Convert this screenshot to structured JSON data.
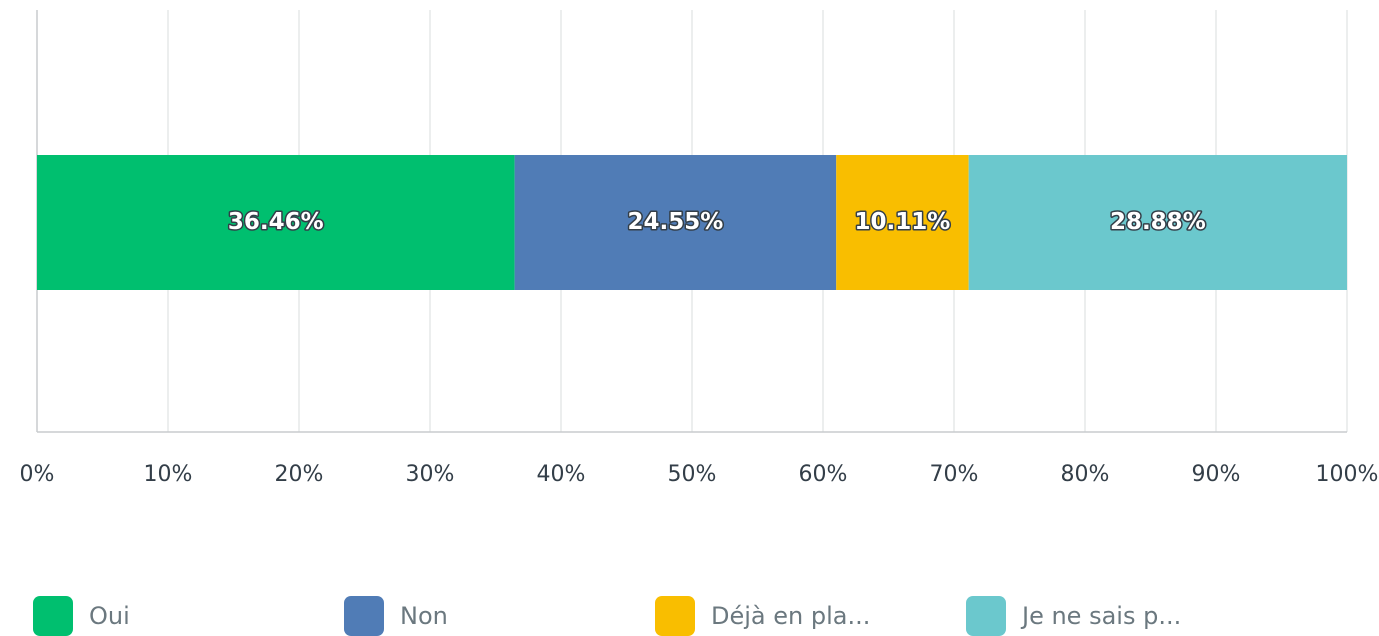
{
  "chart_data": {
    "type": "bar",
    "orientation": "horizontal",
    "stacked": true,
    "categories": [
      null
    ],
    "series": [
      {
        "name": "Oui",
        "color": "#00bf6f",
        "values": [
          36.46
        ],
        "value_labels": [
          "36.46%"
        ]
      },
      {
        "name": "Non",
        "color": "#507cb6",
        "values": [
          24.55
        ],
        "value_labels": [
          "24.55%"
        ]
      },
      {
        "name": "Déjà en pla...",
        "color": "#f9be00",
        "values": [
          10.11
        ],
        "value_labels": [
          "10.11%"
        ]
      },
      {
        "name": "Je ne sais p...",
        "color": "#6bc8cd",
        "values": [
          28.88
        ],
        "value_labels": [
          "28.88%"
        ]
      }
    ],
    "xlim": [
      0,
      100
    ],
    "xticks": [
      {
        "value": 0,
        "label": "0%"
      },
      {
        "value": 10,
        "label": "10%"
      },
      {
        "value": 20,
        "label": "20%"
      },
      {
        "value": 30,
        "label": "30%"
      },
      {
        "value": 40,
        "label": "40%"
      },
      {
        "value": 50,
        "label": "50%"
      },
      {
        "value": 60,
        "label": "60%"
      },
      {
        "value": 70,
        "label": "70%"
      },
      {
        "value": 80,
        "label": "80%"
      },
      {
        "value": 90,
        "label": "90%"
      },
      {
        "value": 100,
        "label": "100%"
      }
    ],
    "grid": true,
    "legend": "bottom"
  }
}
